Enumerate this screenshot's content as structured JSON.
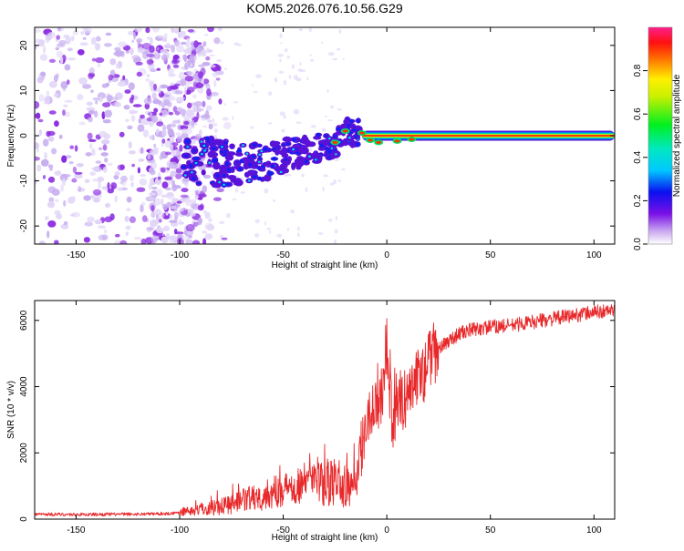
{
  "page": {
    "title": "KOM5.2026.076.10.56.G29"
  },
  "chart_data": [
    {
      "type": "heatmap",
      "xlabel": "Height of straight line (km)",
      "ylabel": "Frequency (Hz)",
      "xlim": [
        -170,
        110
      ],
      "ylim": [
        -24,
        24
      ],
      "x_ticks": [
        -150,
        -100,
        -50,
        0,
        50,
        100
      ],
      "y_ticks": [
        -20,
        -10,
        0,
        10,
        20
      ],
      "colorbar": {
        "label": "Normalized spectral amplitude",
        "range": [
          0,
          1
        ],
        "ticks": [
          0.0,
          0.2,
          0.4,
          0.6,
          0.8
        ],
        "tick_labels": [
          "0.0",
          "0.2",
          "0.4",
          "0.6",
          "0.8"
        ]
      },
      "ridge": [
        {
          "x": -95,
          "y": -5.5
        },
        {
          "x": -80,
          "y": -6
        },
        {
          "x": -70,
          "y": -6
        },
        {
          "x": -60,
          "y": -6.5
        },
        {
          "x": -50,
          "y": -4.5
        },
        {
          "x": -40,
          "y": -3.5
        },
        {
          "x": -30,
          "y": -2.5
        },
        {
          "x": -25,
          "y": -1.5
        },
        {
          "x": -20,
          "y": 0.5
        },
        {
          "x": -15,
          "y": 1
        },
        {
          "x": -10,
          "y": -0.5
        },
        {
          "x": -5,
          "y": -1.5
        },
        {
          "x": 0,
          "y": -1.5
        },
        {
          "x": 10,
          "y": -1
        },
        {
          "x": 20,
          "y": 0
        },
        {
          "x": 110,
          "y": 0
        }
      ]
    },
    {
      "type": "line",
      "xlabel": "Height of straight line (km)",
      "ylabel": "SNR (10 * v/v)",
      "xlim": [
        -170,
        110
      ],
      "ylim": [
        0,
        6600
      ],
      "x_ticks": [
        -150,
        -100,
        -50,
        0,
        50,
        100
      ],
      "y_ticks": [
        0,
        2000,
        4000,
        6000
      ],
      "series": [
        {
          "name": "SNR",
          "color": "#e8282a",
          "x": [
            -170,
            -150,
            -120,
            -105,
            -100,
            -90,
            -80,
            -70,
            -60,
            -50,
            -45,
            -40,
            -35,
            -30,
            -25,
            -22,
            -20,
            -18,
            -15,
            -12,
            -10,
            -8,
            -5,
            -3,
            -1,
            0,
            1,
            2,
            3,
            5,
            8,
            10,
            12,
            15,
            18,
            20,
            25,
            30,
            35,
            40,
            50,
            60,
            70,
            80,
            90,
            100,
            110
          ],
          "values": [
            150,
            140,
            150,
            170,
            200,
            300,
            400,
            550,
            700,
            900,
            1000,
            1100,
            1200,
            1000,
            1100,
            1200,
            800,
            1100,
            1400,
            2000,
            3000,
            3300,
            3500,
            3700,
            4300,
            5500,
            4200,
            3500,
            2800,
            3700,
            3500,
            3800,
            4000,
            4300,
            4400,
            4800,
            5100,
            5400,
            5600,
            5700,
            5800,
            5850,
            5950,
            6050,
            6150,
            6250,
            6300
          ]
        }
      ]
    }
  ]
}
